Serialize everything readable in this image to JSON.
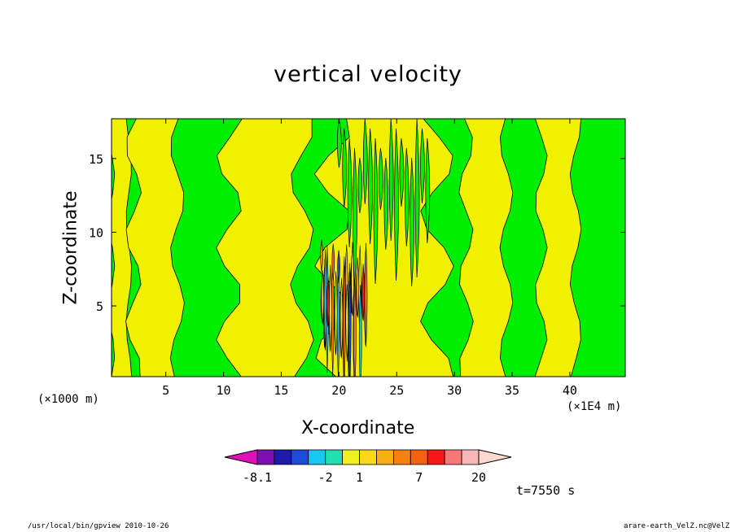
{
  "chart_data": {
    "type": "heatmap",
    "title": "vertical velocity",
    "xlabel": "X-coordinate",
    "ylabel": "Z-coordinate",
    "x_unit_label": "(×1000 m)",
    "x_scale_label": "(×1E4 m)",
    "xlim": [
      0.3,
      44.8
    ],
    "ylim": [
      0.2,
      17.7
    ],
    "x_ticks": [
      5,
      10,
      15,
      20,
      25,
      30,
      35,
      40
    ],
    "y_ticks": [
      5,
      10,
      15
    ],
    "time_label": "t=7550 s",
    "colorbar": {
      "colors": [
        "#e010b8",
        "#7c10b0",
        "#1c1ca8",
        "#1c4cd8",
        "#18c8f0",
        "#20e0b0",
        "#f0f020",
        "#f8d818",
        "#f8b010",
        "#f88010",
        "#f86010",
        "#f81818",
        "#f87878",
        "#f8b8b8",
        "#ffd8d0"
      ],
      "tick_labels": [
        "-8.1",
        "-2",
        "1",
        "7",
        "20"
      ]
    },
    "background_field": {
      "base_color": "#00ee00",
      "positive_color": "#f0f000",
      "positive_bands_x": [
        [
          0.3,
          1.8
        ],
        [
          2.2,
          6.0
        ],
        [
          10.5,
          16.8
        ],
        [
          19.5,
          28.5
        ],
        [
          31.0,
          34.5
        ],
        [
          37.5,
          40.5
        ]
      ],
      "convective_core_x": [
        18.5,
        22.5
      ]
    }
  },
  "footer": {
    "left": "/usr/local/bin/gpview  2010-10-26",
    "right": "arare-earth_VelZ.nc@VelZ"
  }
}
